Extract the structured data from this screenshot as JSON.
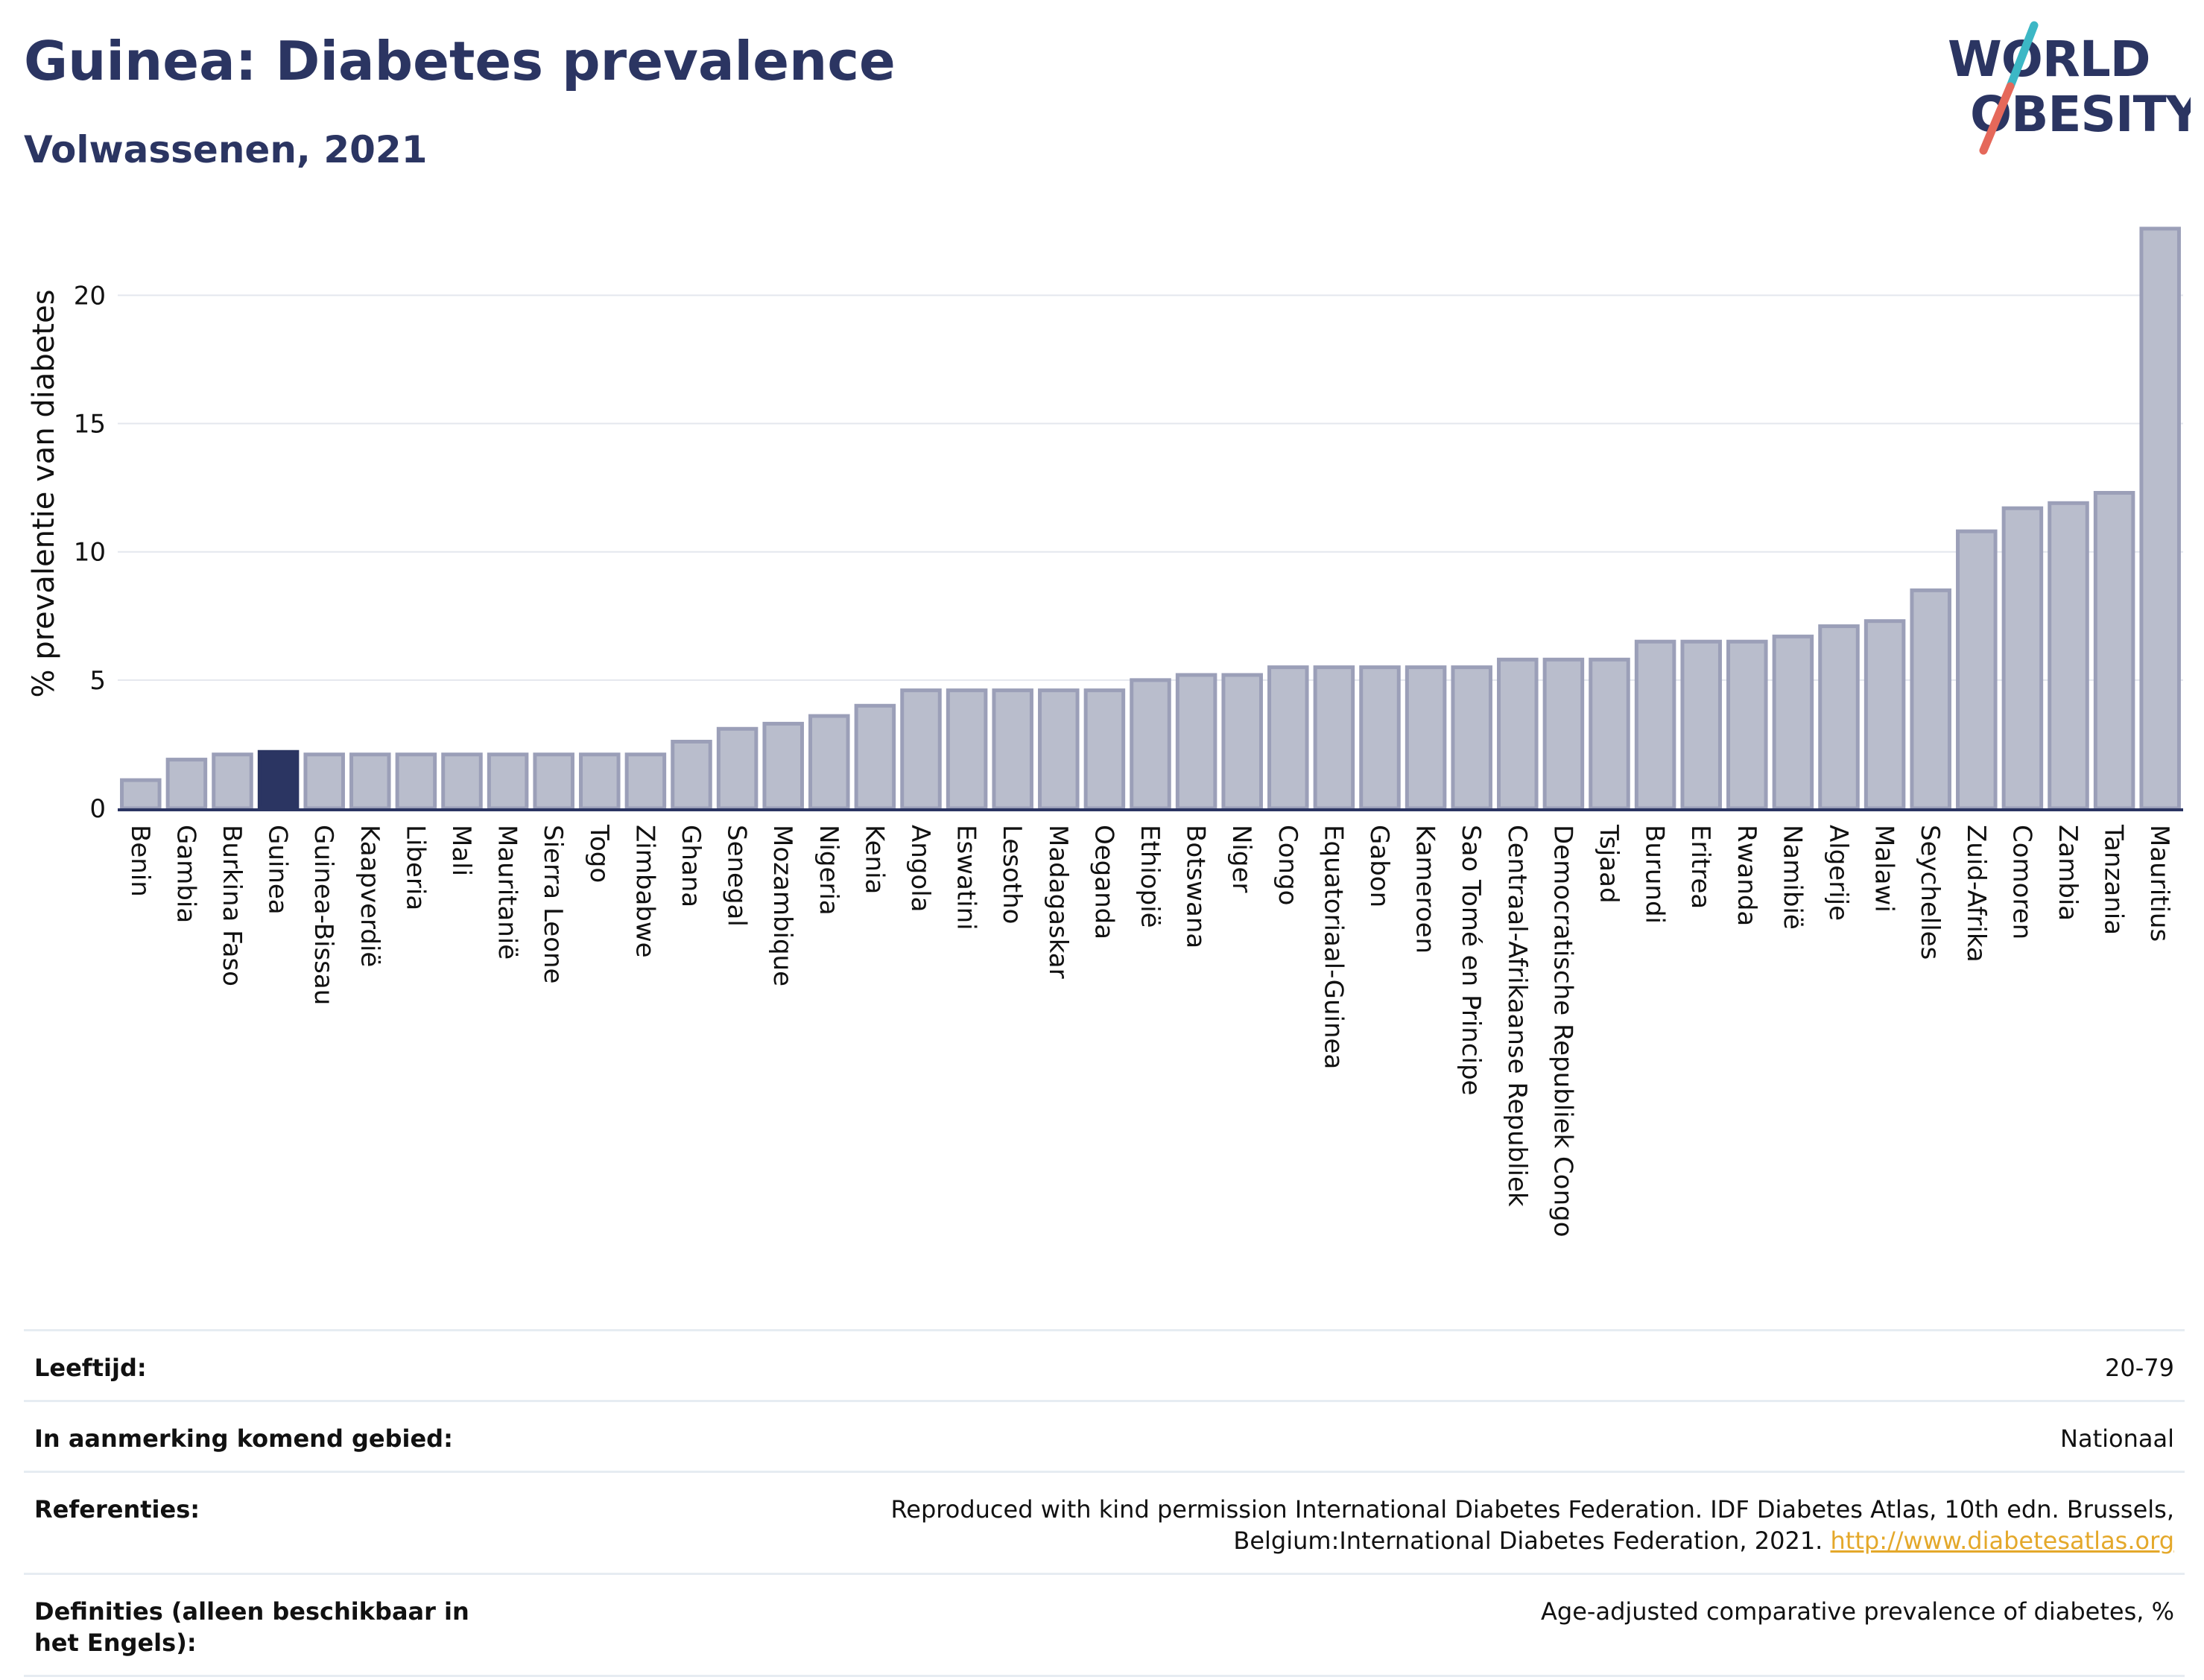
{
  "header": {
    "title": "Guinea: Diabetes prevalence",
    "subtitle": "Volwassenen, 2021"
  },
  "logo": {
    "line1": "WORLD",
    "line2": "OBESITY",
    "colors": {
      "text": "#2b3562",
      "slash_top": "#3cb7c5",
      "slash_bottom": "#e5685a"
    }
  },
  "colors": {
    "bar": "#b9bdcc",
    "bar_stroke": "#9b9fb8",
    "highlight": "#2b3562",
    "grid": "#e4e7ee",
    "axis": "#2b3562",
    "text": "#111111"
  },
  "chart_data": {
    "type": "bar",
    "title": "Guinea: Diabetes prevalence",
    "subtitle": "Volwassenen, 2021",
    "xlabel": "",
    "ylabel": "% prevalentie van diabetes",
    "ylim": [
      0,
      22.8
    ],
    "yticks": [
      0,
      5,
      10,
      15,
      20
    ],
    "grid": true,
    "highlight": "Guinea",
    "categories": [
      "Benin",
      "Gambia",
      "Burkina Faso",
      "Guinea",
      "Guinea-Bissau",
      "Kaapverdië",
      "Liberia",
      "Mali",
      "Mauritanië",
      "Sierra Leone",
      "Togo",
      "Zimbabwe",
      "Ghana",
      "Senegal",
      "Mozambique",
      "Nigeria",
      "Kenia",
      "Angola",
      "Eswatini",
      "Lesotho",
      "Madagaskar",
      "Oeganda",
      "Ethiopië",
      "Botswana",
      "Niger",
      "Congo",
      "Equatoriaal-Guinea",
      "Gabon",
      "Kameroen",
      "Sao Tomé en Principe",
      "Centraal-Afrikaanse Republiek",
      "Democratische Republiek Congo",
      "Tsjaad",
      "Burundi",
      "Eritrea",
      "Rwanda",
      "Namibië",
      "Algerije",
      "Malawi",
      "Seychelles",
      "Zuid-Afrika",
      "Comoren",
      "Zambia",
      "Tanzania",
      "Mauritius"
    ],
    "values": [
      1.1,
      1.9,
      2.1,
      2.2,
      2.1,
      2.1,
      2.1,
      2.1,
      2.1,
      2.1,
      2.1,
      2.1,
      2.6,
      3.1,
      3.3,
      3.6,
      4.0,
      4.6,
      4.6,
      4.6,
      4.6,
      4.6,
      5.0,
      5.2,
      5.2,
      5.5,
      5.5,
      5.5,
      5.5,
      5.5,
      5.8,
      5.8,
      5.8,
      6.5,
      6.5,
      6.5,
      6.7,
      7.1,
      7.3,
      8.5,
      10.8,
      11.7,
      11.9,
      12.3,
      22.6
    ]
  },
  "meta": {
    "rows": [
      {
        "label": "Leeftijd:",
        "value": "20-79"
      },
      {
        "label": "In aanmerking komend gebied:",
        "value": "Nationaal"
      },
      {
        "label": "Referenties:",
        "value": "Reproduced with kind permission International Diabetes Federation.  IDF Diabetes Atlas, 10th edn. Brussels, Belgium:International Diabetes Federation, 2021.",
        "link": "http://www.diabetesatlas.org"
      },
      {
        "label": "Definities (alleen beschikbaar in het Engels):",
        "value": "Age-adjusted comparative prevalence of diabetes, %"
      }
    ]
  }
}
